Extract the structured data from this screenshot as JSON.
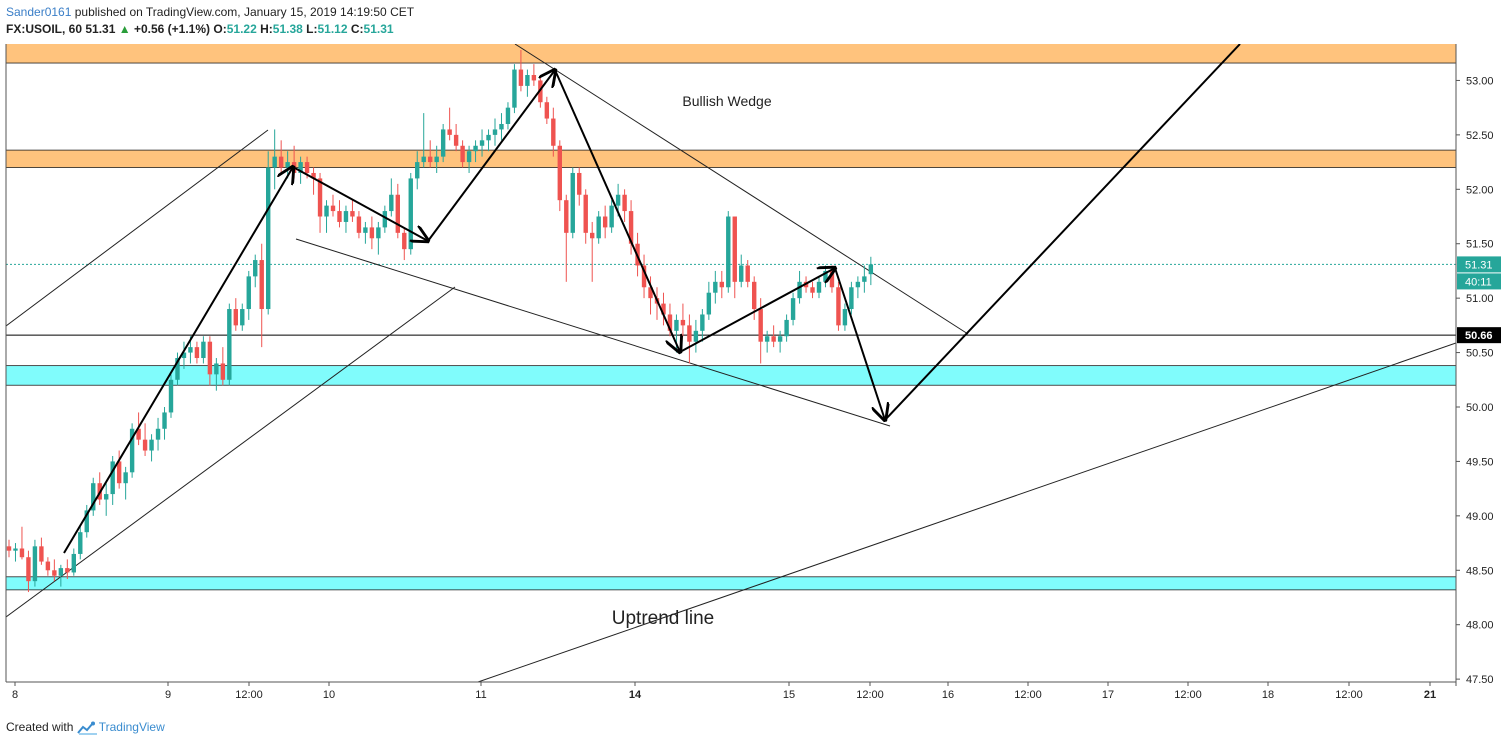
{
  "header": {
    "author": "Sander0161",
    "published": "published on TradingView.com, January 15, 2019 14:19:50 CET",
    "symbol": "FX:USOIL, 60",
    "last": "51.31",
    "up_arrow": "▲",
    "change": "+0.56 (+1.1%)",
    "o_label": "O:",
    "o_value": "51.22",
    "h_label": "H:",
    "h_value": "51.38",
    "l_label": "L:",
    "l_value": "51.12",
    "c_label": "C:",
    "c_value": "51.31"
  },
  "footer": {
    "created_with": "Created with",
    "brand": "TradingView",
    "brand_icon": "tradingview-logo-icon"
  },
  "colors": {
    "up_candle": "#26a69a",
    "down_candle": "#ef5350",
    "resistance_zone": "#ffc37d",
    "support_zone": "#80fcfc",
    "price_label": "#26a69a",
    "level_label": "#000000"
  },
  "chart_data": {
    "type": "candlestick",
    "symbol": "FX:USOIL",
    "interval": "60",
    "y_ticks": [
      "53.00",
      "52.50",
      "52.00",
      "51.50",
      "51.00",
      "50.50",
      "50.00",
      "49.50",
      "49.00",
      "48.50",
      "48.00",
      "47.50"
    ],
    "y_range": [
      47.45,
      53.42
    ],
    "x_labels": [
      "8",
      "9",
      "12:00",
      "10",
      "11",
      "14",
      "15",
      "12:00",
      "16",
      "12:00",
      "17",
      "12:00",
      "18",
      "12:00",
      "21"
    ],
    "x_label_bold": [
      "14",
      "21"
    ],
    "current_price": "51.31",
    "countdown": "40:11",
    "horizontal_level": "50.66",
    "resistance_zones": [
      [
        53.16,
        53.38
      ],
      [
        52.2,
        52.36
      ]
    ],
    "support_zones": [
      [
        50.2,
        50.38
      ],
      [
        48.32,
        48.44
      ]
    ],
    "annotations": [
      "Bullish Wedge",
      "Uptrend line"
    ],
    "candles_ohlc": [
      [
        48.72,
        48.78,
        48.62,
        48.68
      ],
      [
        48.68,
        48.75,
        48.58,
        48.7
      ],
      [
        48.7,
        48.9,
        48.6,
        48.62
      ],
      [
        48.62,
        48.68,
        48.3,
        48.4
      ],
      [
        48.4,
        48.78,
        48.35,
        48.72
      ],
      [
        48.72,
        48.8,
        48.55,
        48.58
      ],
      [
        48.58,
        48.62,
        48.45,
        48.5
      ],
      [
        48.5,
        48.6,
        48.4,
        48.45
      ],
      [
        48.45,
        48.55,
        48.35,
        48.52
      ],
      [
        48.52,
        48.6,
        48.42,
        48.48
      ],
      [
        48.48,
        48.7,
        48.45,
        48.65
      ],
      [
        48.65,
        48.9,
        48.6,
        48.85
      ],
      [
        48.85,
        49.1,
        48.8,
        49.05
      ],
      [
        49.05,
        49.35,
        49.0,
        49.3
      ],
      [
        49.3,
        49.4,
        49.1,
        49.15
      ],
      [
        49.15,
        49.3,
        49.0,
        49.2
      ],
      [
        49.2,
        49.55,
        49.1,
        49.5
      ],
      [
        49.5,
        49.6,
        49.25,
        49.3
      ],
      [
        49.3,
        49.45,
        49.15,
        49.4
      ],
      [
        49.4,
        49.85,
        49.35,
        49.8
      ],
      [
        49.8,
        49.95,
        49.65,
        49.7
      ],
      [
        49.7,
        49.85,
        49.55,
        49.6
      ],
      [
        49.6,
        49.75,
        49.5,
        49.7
      ],
      [
        49.7,
        49.9,
        49.6,
        49.8
      ],
      [
        49.8,
        50.0,
        49.7,
        49.95
      ],
      [
        49.95,
        50.3,
        49.9,
        50.25
      ],
      [
        50.25,
        50.5,
        50.2,
        50.45
      ],
      [
        50.45,
        50.6,
        50.35,
        50.5
      ],
      [
        50.5,
        50.65,
        50.4,
        50.55
      ],
      [
        50.55,
        50.6,
        50.4,
        50.45
      ],
      [
        50.45,
        50.65,
        50.4,
        50.6
      ],
      [
        50.6,
        50.65,
        50.2,
        50.3
      ],
      [
        50.3,
        50.45,
        50.15,
        50.4
      ],
      [
        50.4,
        50.55,
        50.2,
        50.25
      ],
      [
        50.25,
        50.95,
        50.2,
        50.9
      ],
      [
        50.9,
        51.0,
        50.7,
        50.75
      ],
      [
        50.75,
        50.95,
        50.7,
        50.9
      ],
      [
        50.9,
        51.25,
        50.8,
        51.2
      ],
      [
        51.2,
        51.4,
        51.1,
        51.35
      ],
      [
        51.35,
        51.5,
        50.55,
        50.9
      ],
      [
        50.9,
        52.35,
        50.85,
        52.2
      ],
      [
        52.2,
        52.55,
        52.0,
        52.3
      ],
      [
        52.3,
        52.45,
        52.15,
        52.2
      ],
      [
        52.2,
        52.35,
        52.1,
        52.25
      ],
      [
        52.25,
        52.4,
        52.1,
        52.15
      ],
      [
        52.15,
        52.3,
        52.05,
        52.25
      ],
      [
        52.25,
        52.3,
        52.1,
        52.15
      ],
      [
        52.15,
        52.2,
        51.95,
        52.1
      ],
      [
        52.1,
        52.15,
        51.6,
        51.75
      ],
      [
        51.75,
        51.9,
        51.6,
        51.85
      ],
      [
        51.85,
        51.95,
        51.75,
        51.8
      ],
      [
        51.8,
        51.9,
        51.65,
        51.7
      ],
      [
        51.7,
        51.85,
        51.6,
        51.8
      ],
      [
        51.8,
        51.9,
        51.7,
        51.75
      ],
      [
        51.75,
        51.8,
        51.55,
        51.6
      ],
      [
        51.6,
        51.7,
        51.5,
        51.65
      ],
      [
        51.65,
        51.75,
        51.45,
        51.55
      ],
      [
        51.55,
        51.7,
        51.4,
        51.65
      ],
      [
        51.65,
        51.85,
        51.6,
        51.8
      ],
      [
        51.8,
        52.1,
        51.75,
        51.95
      ],
      [
        51.95,
        52.05,
        51.55,
        51.6
      ],
      [
        51.6,
        51.65,
        51.35,
        51.45
      ],
      [
        51.45,
        52.15,
        51.4,
        52.1
      ],
      [
        52.1,
        52.35,
        52.0,
        52.25
      ],
      [
        52.25,
        52.7,
        52.2,
        52.3
      ],
      [
        52.3,
        52.45,
        52.2,
        52.25
      ],
      [
        52.25,
        52.4,
        52.15,
        52.3
      ],
      [
        52.3,
        52.6,
        52.25,
        52.55
      ],
      [
        52.55,
        52.75,
        52.45,
        52.5
      ],
      [
        52.5,
        52.6,
        52.35,
        52.4
      ],
      [
        52.4,
        52.45,
        52.2,
        52.25
      ],
      [
        52.25,
        52.4,
        52.15,
        52.35
      ],
      [
        52.35,
        52.45,
        52.25,
        52.4
      ],
      [
        52.4,
        52.55,
        52.3,
        52.45
      ],
      [
        52.45,
        52.55,
        52.35,
        52.5
      ],
      [
        52.5,
        52.65,
        52.4,
        52.55
      ],
      [
        52.55,
        52.7,
        52.45,
        52.6
      ],
      [
        52.6,
        52.8,
        52.55,
        52.75
      ],
      [
        52.75,
        53.15,
        52.7,
        53.1
      ],
      [
        53.1,
        53.28,
        52.9,
        52.95
      ],
      [
        52.95,
        53.1,
        52.85,
        53.05
      ],
      [
        53.05,
        53.15,
        52.95,
        53.0
      ],
      [
        53.0,
        53.05,
        52.75,
        52.8
      ],
      [
        52.8,
        52.85,
        52.6,
        52.65
      ],
      [
        52.65,
        52.75,
        52.3,
        52.4
      ],
      [
        52.4,
        52.45,
        51.8,
        51.9
      ],
      [
        51.9,
        51.95,
        51.15,
        51.6
      ],
      [
        51.6,
        52.2,
        51.55,
        52.15
      ],
      [
        52.15,
        52.2,
        51.85,
        51.95
      ],
      [
        51.95,
        52.0,
        51.5,
        51.6
      ],
      [
        51.6,
        51.7,
        51.15,
        51.55
      ],
      [
        51.55,
        51.8,
        51.5,
        51.75
      ],
      [
        51.75,
        51.85,
        51.55,
        51.65
      ],
      [
        51.65,
        51.9,
        51.6,
        51.85
      ],
      [
        51.85,
        52.05,
        51.75,
        51.95
      ],
      [
        51.95,
        52.0,
        51.7,
        51.8
      ],
      [
        51.8,
        51.9,
        51.4,
        51.5
      ],
      [
        51.5,
        51.6,
        51.2,
        51.3
      ],
      [
        51.3,
        51.4,
        51.0,
        51.1
      ],
      [
        51.1,
        51.2,
        50.85,
        51.0
      ],
      [
        51.0,
        51.1,
        50.8,
        50.95
      ],
      [
        50.95,
        51.05,
        50.75,
        50.85
      ],
      [
        50.85,
        50.95,
        50.65,
        50.7
      ],
      [
        50.7,
        50.85,
        50.5,
        50.8
      ],
      [
        50.8,
        50.95,
        50.65,
        50.75
      ],
      [
        50.75,
        50.85,
        50.4,
        50.6
      ],
      [
        50.6,
        50.8,
        50.5,
        50.7
      ],
      [
        50.7,
        50.9,
        50.6,
        50.85
      ],
      [
        50.85,
        51.15,
        50.8,
        51.05
      ],
      [
        51.05,
        51.25,
        50.95,
        51.15
      ],
      [
        51.15,
        51.25,
        51.0,
        51.1
      ],
      [
        51.1,
        51.8,
        51.05,
        51.75
      ],
      [
        51.75,
        51.7,
        51.0,
        51.15
      ],
      [
        51.15,
        51.4,
        51.1,
        51.3
      ],
      [
        51.3,
        51.35,
        51.1,
        51.15
      ],
      [
        51.15,
        51.2,
        50.8,
        50.9
      ],
      [
        50.9,
        51.0,
        50.4,
        50.6
      ],
      [
        50.6,
        50.7,
        50.5,
        50.65
      ],
      [
        50.65,
        50.75,
        50.55,
        50.6
      ],
      [
        50.6,
        50.7,
        50.5,
        50.65
      ],
      [
        50.65,
        50.85,
        50.6,
        50.8
      ],
      [
        50.8,
        51.05,
        50.75,
        51.0
      ],
      [
        51.0,
        51.25,
        50.95,
        51.15
      ],
      [
        51.15,
        51.2,
        51.05,
        51.1
      ],
      [
        51.1,
        51.15,
        51.0,
        51.05
      ],
      [
        51.05,
        51.2,
        51.0,
        51.15
      ],
      [
        51.15,
        51.3,
        51.1,
        51.25
      ],
      [
        51.25,
        51.3,
        51.05,
        51.1
      ],
      [
        51.1,
        51.15,
        50.7,
        50.75
      ],
      [
        50.75,
        50.95,
        50.7,
        50.9
      ],
      [
        50.9,
        51.15,
        50.85,
        51.1
      ],
      [
        51.1,
        51.2,
        51.0,
        51.15
      ],
      [
        51.15,
        51.3,
        51.05,
        51.2
      ],
      [
        51.22,
        51.38,
        51.12,
        51.31
      ]
    ]
  }
}
